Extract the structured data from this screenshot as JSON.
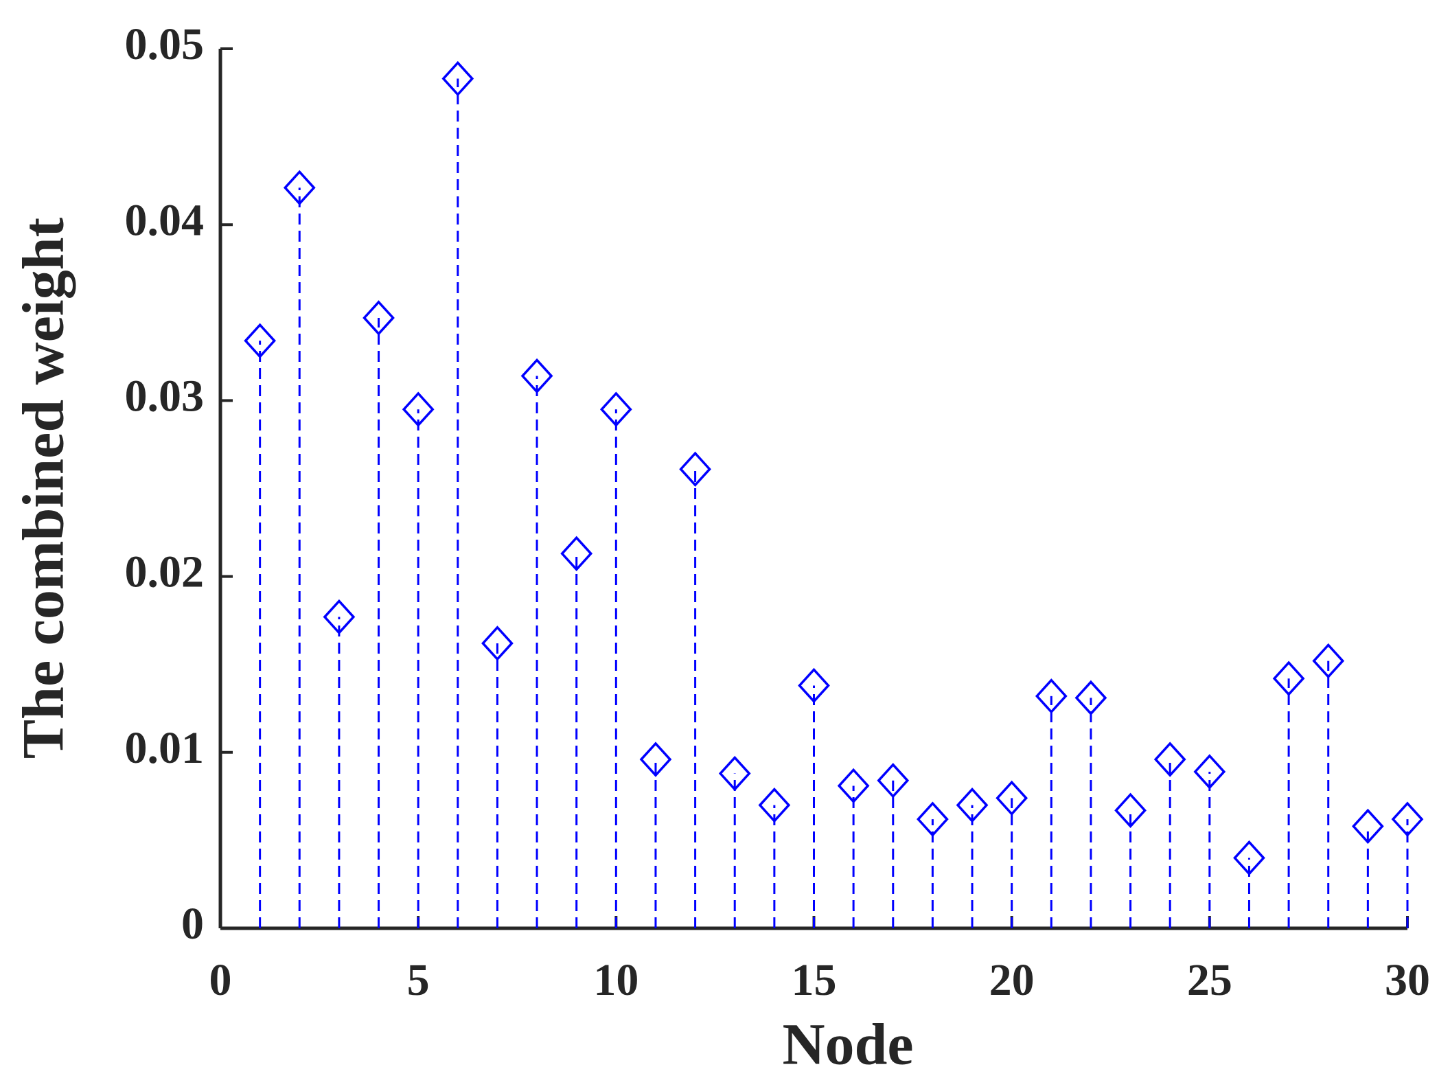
{
  "chart_data": {
    "type": "stem",
    "xlabel": "Node",
    "ylabel": "The combined weight",
    "x": [
      1,
      2,
      3,
      4,
      5,
      6,
      7,
      8,
      9,
      10,
      11,
      12,
      13,
      14,
      15,
      16,
      17,
      18,
      19,
      20,
      21,
      22,
      23,
      24,
      25,
      26,
      27,
      28,
      29,
      30
    ],
    "values": [
      0.0334,
      0.0421,
      0.0177,
      0.0347,
      0.0295,
      0.0483,
      0.0162,
      0.0314,
      0.0213,
      0.0295,
      0.0096,
      0.0261,
      0.0088,
      0.007,
      0.0138,
      0.0081,
      0.0084,
      0.0062,
      0.007,
      0.0074,
      0.0132,
      0.0131,
      0.0067,
      0.0096,
      0.0089,
      0.004,
      0.0142,
      0.0152,
      0.0058,
      0.0062
    ],
    "color": "#0000ff",
    "xlim": [
      0,
      30
    ],
    "xticks": [
      0,
      5,
      10,
      15,
      20,
      25,
      30
    ],
    "ylim": [
      0,
      0.05
    ],
    "yticks": [
      0,
      0.01,
      0.02,
      0.03,
      0.04,
      0.05
    ],
    "grid": false
  }
}
